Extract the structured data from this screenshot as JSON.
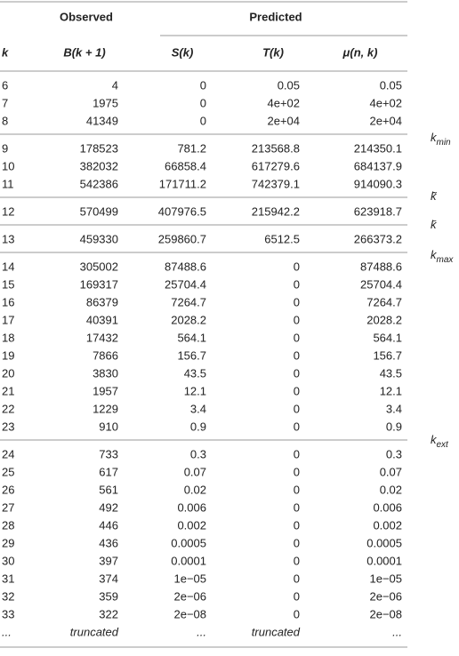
{
  "table": {
    "group_headers": [
      "Observed",
      "Predicted"
    ],
    "columns": [
      "k",
      "B(k + 1)",
      "S(k)",
      "T(k)",
      "μ(n, k)"
    ],
    "groups": [
      [
        [
          "6",
          "4",
          "0",
          "0.05",
          "0.05"
        ],
        [
          "7",
          "1975",
          "0",
          "4e+02",
          "4e+02"
        ],
        [
          "8",
          "41349",
          "0",
          "2e+04",
          "2e+04"
        ]
      ],
      [
        [
          "9",
          "178523",
          "781.2",
          "213568.8",
          "214350.1"
        ],
        [
          "10",
          "382032",
          "66858.4",
          "617279.6",
          "684137.9"
        ],
        [
          "11",
          "542386",
          "171711.2",
          "742379.1",
          "914090.3"
        ]
      ],
      [
        [
          "12",
          "570499",
          "407976.5",
          "215942.2",
          "623918.7"
        ]
      ],
      [
        [
          "13",
          "459330",
          "259860.7",
          "6512.5",
          "266373.2"
        ]
      ],
      [
        [
          "14",
          "305002",
          "87488.6",
          "0",
          "87488.6"
        ],
        [
          "15",
          "169317",
          "25704.4",
          "0",
          "25704.4"
        ],
        [
          "16",
          "86379",
          "7264.7",
          "0",
          "7264.7"
        ],
        [
          "17",
          "40391",
          "2028.2",
          "0",
          "2028.2"
        ],
        [
          "18",
          "17432",
          "564.1",
          "0",
          "564.1"
        ],
        [
          "19",
          "7866",
          "156.7",
          "0",
          "156.7"
        ],
        [
          "20",
          "3830",
          "43.5",
          "0",
          "43.5"
        ],
        [
          "21",
          "1957",
          "12.1",
          "0",
          "12.1"
        ],
        [
          "22",
          "1229",
          "3.4",
          "0",
          "3.4"
        ],
        [
          "23",
          "910",
          "0.9",
          "0",
          "0.9"
        ]
      ],
      [
        [
          "24",
          "733",
          "0.3",
          "0",
          "0.3"
        ],
        [
          "25",
          "617",
          "0.07",
          "0",
          "0.07"
        ],
        [
          "26",
          "561",
          "0.02",
          "0",
          "0.02"
        ],
        [
          "27",
          "492",
          "0.006",
          "0",
          "0.006"
        ],
        [
          "28",
          "446",
          "0.002",
          "0",
          "0.002"
        ],
        [
          "29",
          "436",
          "0.0005",
          "0",
          "0.0005"
        ],
        [
          "30",
          "397",
          "0.0001",
          "0",
          "0.0001"
        ],
        [
          "31",
          "374",
          "1e−05",
          "0",
          "1e−05"
        ],
        [
          "32",
          "359",
          "2e−06",
          "0",
          "2e−06"
        ],
        [
          "33",
          "322",
          "2e−08",
          "0",
          "2e−08"
        ],
        [
          "...",
          "truncated",
          "...",
          "truncated",
          "..."
        ]
      ]
    ]
  },
  "side_labels": [
    {
      "base": "k",
      "sub": "min"
    },
    {
      "base": "k̃"
    },
    {
      "base": "k̄"
    },
    {
      "base": "k",
      "sub": "max"
    },
    {
      "base": "k",
      "sub": "ext"
    }
  ]
}
